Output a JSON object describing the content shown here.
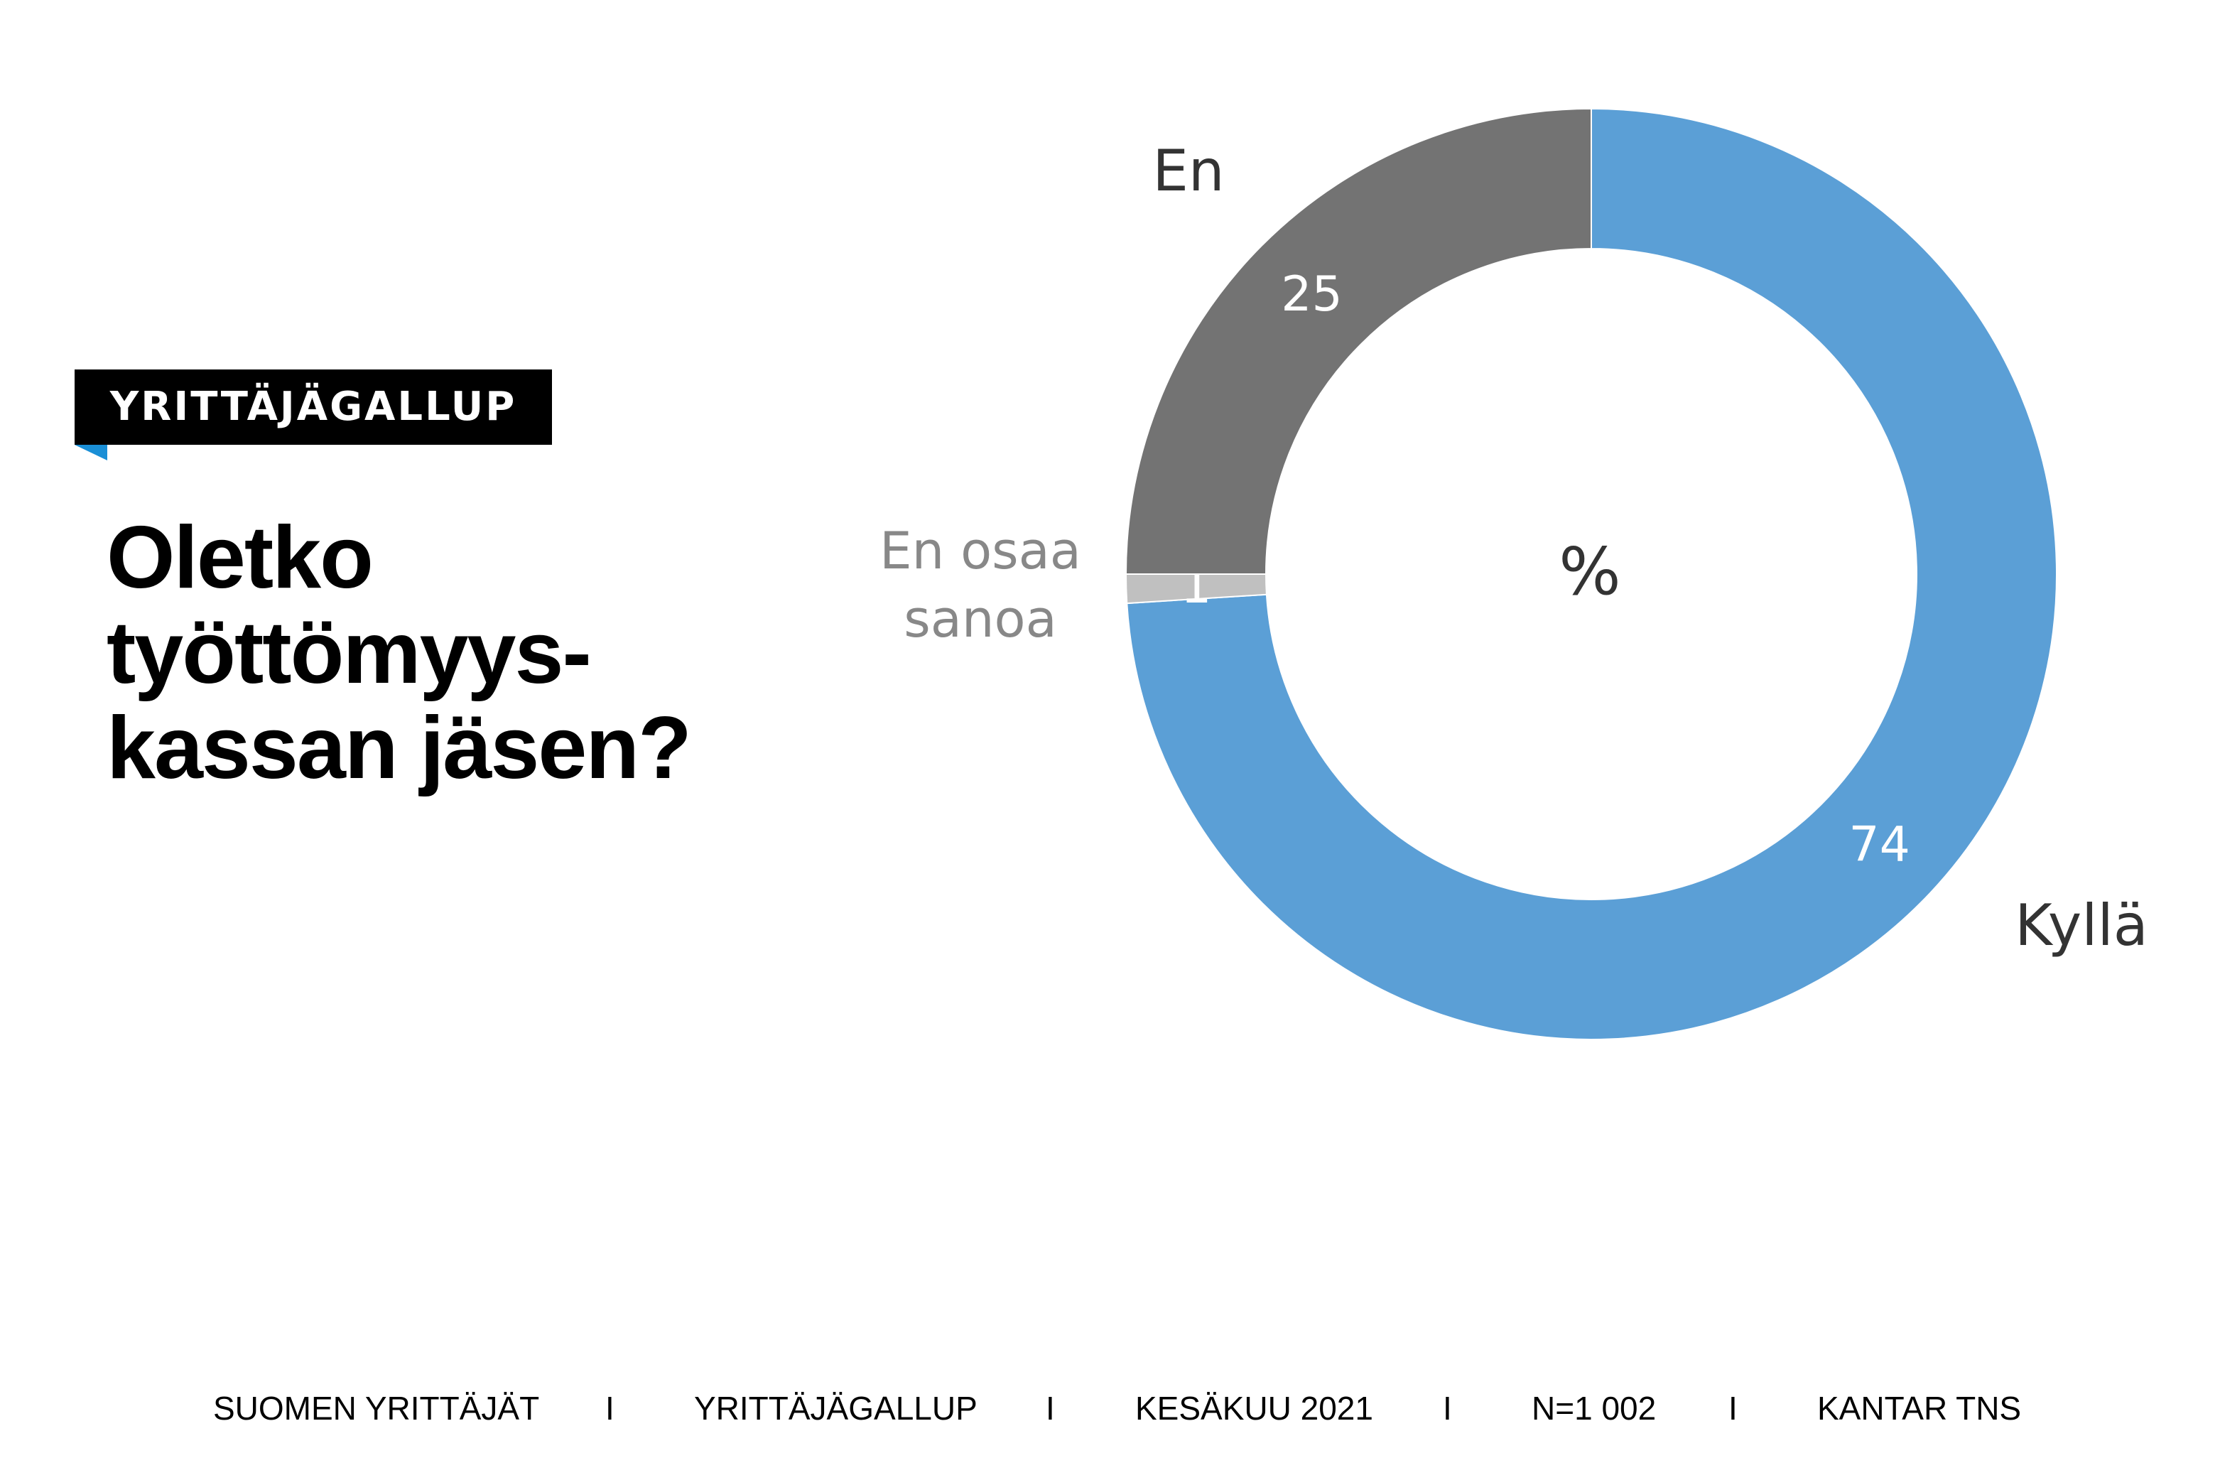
{
  "badge": {
    "label": "YRITTÄJÄGALLUP"
  },
  "question": "Oletko\ntyöttömyys-\nkassan jäsen?",
  "chart_data": {
    "type": "pie",
    "donut": true,
    "center_label": "%",
    "slices": [
      {
        "label": "Kyllä",
        "value": 74,
        "color": "#5b9fd6"
      },
      {
        "label": "En osaa sanoa",
        "value": 1,
        "color": "#c0c0c0"
      },
      {
        "label": "En",
        "value": 25,
        "color": "#737373"
      }
    ]
  },
  "footer": {
    "items": [
      "SUOMEN YRITTÄJÄT",
      "YRITTÄJÄGALLUP",
      "KESÄKUU 2021",
      "N=1 002",
      "KANTAR TNS"
    ],
    "separator": "I"
  }
}
